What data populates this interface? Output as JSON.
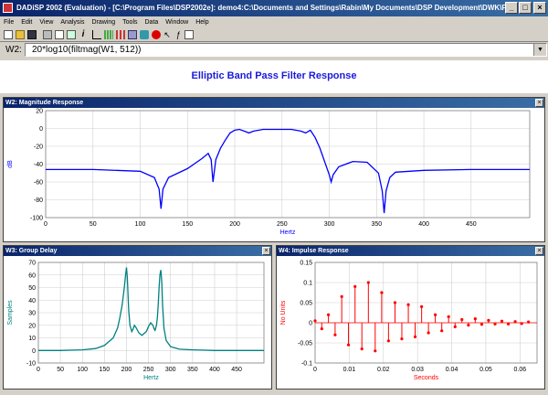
{
  "window": {
    "title": "DADiSP 2002 (Evaluation) - [C:\\Program Files\\DSP2002e]: demo4:C:\\Documents and Settings\\Rabin\\My Documents\\DSP Development\\DWK\\Filters.dwk"
  },
  "menu": [
    "File",
    "Edit",
    "View",
    "Analysis",
    "Drawing",
    "Tools",
    "Data",
    "Window",
    "Help"
  ],
  "formula": {
    "label": "W2:",
    "value": "20*log10(filtmag(W1, 512))"
  },
  "page_title": "Elliptic Band Pass Filter Response",
  "panels": {
    "w2": {
      "title": "W2: Magnitude Response"
    },
    "w3": {
      "title": "W3: Group Delay"
    },
    "w4": {
      "title": "W4: Impulse Response"
    }
  },
  "chart_data": [
    {
      "type": "line",
      "panel": "W2",
      "xlabel": "Hertz",
      "ylabel": "dB",
      "xlim": [
        0,
        512
      ],
      "ylim": [
        -100,
        20
      ],
      "xticks": [
        0,
        50,
        100,
        150,
        200,
        250,
        300,
        350,
        400,
        450
      ],
      "yticks": [
        20,
        0,
        -20,
        -40,
        -60,
        -80,
        -100
      ],
      "color": "#0000ff",
      "series": [
        {
          "x": [
            0,
            50,
            100,
            115,
            120,
            122,
            124,
            130,
            150,
            165,
            172,
            175,
            177,
            180,
            185,
            190,
            195,
            200,
            205,
            210,
            215,
            220,
            230,
            240,
            250,
            260,
            270,
            275,
            280,
            285,
            290,
            295,
            300,
            302,
            304,
            310,
            325,
            340,
            352,
            356,
            358,
            360,
            364,
            370,
            400,
            450,
            512
          ],
          "y": [
            -46,
            -46,
            -48,
            -55,
            -68,
            -90,
            -68,
            -55,
            -45,
            -34,
            -28,
            -35,
            -60,
            -35,
            -22,
            -13,
            -5,
            -2,
            -1,
            -3,
            -5,
            -3,
            -1,
            -1,
            -1,
            -1,
            -3,
            -5,
            -2,
            -10,
            -22,
            -37,
            -52,
            -60,
            -52,
            -43,
            -37,
            -38,
            -50,
            -70,
            -95,
            -70,
            -55,
            -49,
            -47,
            -46,
            -46
          ]
        }
      ]
    },
    {
      "type": "line",
      "panel": "W3",
      "xlabel": "Hertz",
      "ylabel": "Samples",
      "xlim": [
        0,
        512
      ],
      "ylim": [
        -10,
        70
      ],
      "xticks": [
        0,
        50,
        100,
        150,
        200,
        250,
        300,
        350,
        400,
        450
      ],
      "yticks": [
        70,
        60,
        50,
        40,
        30,
        20,
        10,
        0,
        -10
      ],
      "color": "#008080",
      "series": [
        {
          "x": [
            0,
            50,
            100,
            130,
            150,
            170,
            180,
            185,
            190,
            195,
            198,
            200,
            202,
            205,
            208,
            212,
            215,
            218,
            222,
            228,
            235,
            245,
            250,
            255,
            260,
            263,
            265,
            268,
            270,
            272,
            274,
            276,
            278,
            280,
            282,
            285,
            290,
            300,
            320,
            350,
            400,
            450,
            512
          ],
          "y": [
            0,
            0,
            0.5,
            1.5,
            4,
            10,
            18,
            26,
            36,
            50,
            60,
            66,
            58,
            32,
            20,
            15,
            17,
            20,
            18,
            14,
            12,
            15,
            19,
            22,
            20,
            17,
            16,
            20,
            26,
            36,
            50,
            60,
            64,
            55,
            36,
            18,
            8,
            3,
            1,
            0.5,
            0,
            0,
            0
          ]
        }
      ]
    },
    {
      "type": "stem",
      "panel": "W4",
      "xlabel": "Seconds",
      "ylabel": "No Units",
      "xlim": [
        0,
        0.065
      ],
      "ylim": [
        -0.1,
        0.15
      ],
      "xticks": [
        0,
        0.01,
        0.02,
        0.03,
        0.04,
        0.05,
        0.06
      ],
      "yticks": [
        0.15,
        0.1,
        0.05,
        0,
        -0.05,
        -0.1
      ],
      "color": "#ff0000",
      "series": [
        {
          "x": [
            0,
            0.00195,
            0.0039,
            0.00586,
            0.0078,
            0.00977,
            0.0117,
            0.0137,
            0.0156,
            0.0176,
            0.0195,
            0.0215,
            0.0234,
            0.0254,
            0.0273,
            0.0293,
            0.0312,
            0.0332,
            0.0352,
            0.0371,
            0.0391,
            0.041,
            0.043,
            0.0449,
            0.0469,
            0.0488,
            0.0508,
            0.0527,
            0.0547,
            0.0566,
            0.0586,
            0.0605,
            0.0625
          ],
          "y": [
            0.005,
            -0.015,
            0.02,
            -0.03,
            0.065,
            -0.055,
            0.09,
            -0.065,
            0.1,
            -0.07,
            0.075,
            -0.045,
            0.05,
            -0.04,
            0.045,
            -0.035,
            0.04,
            -0.025,
            0.02,
            -0.02,
            0.015,
            -0.01,
            0.008,
            -0.006,
            0.01,
            -0.004,
            0.006,
            -0.003,
            0.004,
            -0.003,
            0.003,
            -0.002,
            0.002
          ]
        }
      ]
    }
  ]
}
